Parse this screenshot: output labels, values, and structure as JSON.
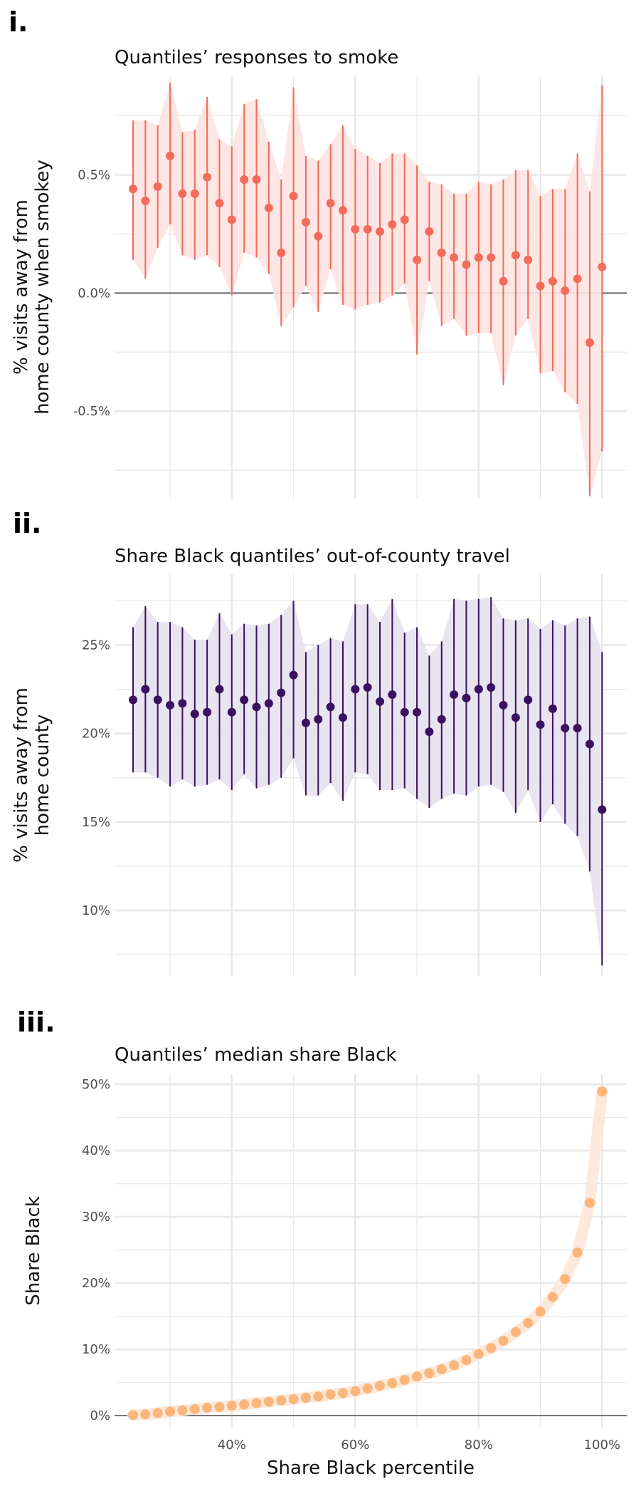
{
  "panels": {
    "p1": {
      "label": "i.",
      "title": "Quantiles’ responses to smoke"
    },
    "p2": {
      "label": "ii.",
      "title": "Share Black quantiles’ out-of-county travel"
    },
    "p3": {
      "label": "iii.",
      "title": "Quantiles’ median share Black"
    }
  },
  "colors": {
    "p1": "#F26B5B",
    "p1_band": "#FDE3E0",
    "p2": "#3A1060",
    "p2_band": "#E6E1EE",
    "p3": "#FCB57A",
    "p3_band": "#FDE9DB",
    "grid": "#E8E8E8",
    "zero": "#333333"
  },
  "chart_data": [
    {
      "type": "scatter",
      "title": "Quantiles’ responses to smoke",
      "ylabel": [
        "% visits away from",
        "home county when smokey"
      ],
      "xlabel": "",
      "xlim": [
        21,
        104
      ],
      "ylim": [
        -0.87,
        0.92
      ],
      "yticks": [
        {
          "v": 0.5,
          "label": "0.5%"
        },
        {
          "v": 0.0,
          "label": "0.0%"
        },
        {
          "v": -0.5,
          "label": "-0.5%"
        }
      ],
      "zero_line": true,
      "x": [
        24,
        26,
        28,
        30,
        32,
        34,
        36,
        38,
        40,
        42,
        44,
        46,
        48,
        50,
        52,
        54,
        56,
        58,
        60,
        62,
        64,
        66,
        68,
        70,
        72,
        74,
        76,
        78,
        80,
        82,
        84,
        86,
        88,
        90,
        92,
        94,
        96,
        98,
        100
      ],
      "series": [
        {
          "y": [
            0.44,
            0.39,
            0.45,
            0.58,
            0.42,
            0.42,
            0.49,
            0.38,
            0.31,
            0.48,
            0.48,
            0.36,
            0.17,
            0.41,
            0.3,
            0.24,
            0.38,
            0.35,
            0.27,
            0.27,
            0.26,
            0.29,
            0.31,
            0.14,
            0.26,
            0.17,
            0.15,
            0.12,
            0.15,
            0.15,
            0.05,
            0.16,
            0.14,
            0.03,
            0.05,
            0.01,
            0.06,
            -0.21,
            0.11
          ],
          "lo": [
            0.14,
            0.06,
            0.19,
            0.29,
            0.16,
            0.14,
            0.16,
            0.11,
            -0.01,
            0.17,
            0.15,
            0.08,
            -0.14,
            -0.06,
            0.03,
            -0.08,
            0.1,
            -0.05,
            -0.07,
            -0.05,
            -0.04,
            -0.01,
            0.04,
            -0.26,
            0.05,
            -0.14,
            -0.11,
            -0.18,
            -0.17,
            -0.17,
            -0.39,
            -0.18,
            -0.11,
            -0.34,
            -0.33,
            -0.42,
            -0.47,
            -0.86,
            -0.67
          ],
          "hi": [
            0.73,
            0.73,
            0.71,
            0.89,
            0.68,
            0.69,
            0.83,
            0.65,
            0.62,
            0.8,
            0.82,
            0.64,
            0.48,
            0.87,
            0.58,
            0.56,
            0.63,
            0.71,
            0.61,
            0.58,
            0.55,
            0.59,
            0.59,
            0.54,
            0.47,
            0.46,
            0.42,
            0.42,
            0.47,
            0.46,
            0.48,
            0.52,
            0.52,
            0.41,
            0.44,
            0.44,
            0.59,
            0.43,
            0.88
          ]
        }
      ]
    },
    {
      "type": "scatter",
      "title": "Share Black quantiles’ out-of-county travel",
      "ylabel": [
        "% visits away from",
        "home county"
      ],
      "xlabel": "",
      "xlim": [
        21,
        104
      ],
      "ylim": [
        6.3,
        29.0
      ],
      "yticks": [
        {
          "v": 25,
          "label": "25%"
        },
        {
          "v": 20,
          "label": "20%"
        },
        {
          "v": 15,
          "label": "15%"
        },
        {
          "v": 10,
          "label": "10%"
        }
      ],
      "zero_line": false,
      "x": [
        24,
        26,
        28,
        30,
        32,
        34,
        36,
        38,
        40,
        42,
        44,
        46,
        48,
        50,
        52,
        54,
        56,
        58,
        60,
        62,
        64,
        66,
        68,
        70,
        72,
        74,
        76,
        78,
        80,
        82,
        84,
        86,
        88,
        90,
        92,
        94,
        96,
        98,
        100
      ],
      "series": [
        {
          "y": [
            21.9,
            22.5,
            21.9,
            21.6,
            21.7,
            21.1,
            21.2,
            22.5,
            21.2,
            21.9,
            21.5,
            21.7,
            22.3,
            23.3,
            20.6,
            20.8,
            21.5,
            20.9,
            22.5,
            22.6,
            21.8,
            22.2,
            21.2,
            21.2,
            20.1,
            20.8,
            22.2,
            22.0,
            22.5,
            22.6,
            21.6,
            20.9,
            21.9,
            20.5,
            21.4,
            20.3,
            20.3,
            19.4,
            15.7
          ],
          "lo": [
            17.8,
            17.8,
            17.5,
            17.0,
            17.4,
            17.0,
            17.1,
            17.4,
            16.8,
            17.7,
            16.9,
            17.1,
            17.5,
            18.6,
            16.5,
            16.5,
            17.2,
            16.2,
            17.8,
            17.7,
            16.8,
            16.8,
            16.9,
            16.3,
            15.8,
            16.3,
            16.6,
            16.5,
            17.0,
            17.1,
            16.7,
            15.5,
            16.8,
            15.0,
            16.0,
            14.9,
            14.2,
            12.2,
            6.9
          ],
          "hi": [
            26.0,
            27.2,
            26.3,
            26.3,
            26.0,
            25.3,
            25.3,
            26.8,
            25.6,
            26.2,
            26.1,
            26.2,
            26.7,
            27.5,
            24.6,
            25.0,
            25.4,
            25.2,
            27.3,
            27.3,
            26.3,
            27.6,
            25.7,
            26.0,
            24.4,
            25.2,
            27.6,
            27.5,
            27.6,
            27.7,
            26.5,
            26.4,
            26.5,
            25.9,
            26.4,
            26.1,
            26.5,
            26.6,
            24.6
          ]
        }
      ]
    },
    {
      "type": "scatter",
      "title": "Quantiles’ median share Black",
      "ylabel": [
        "Share Black"
      ],
      "xlabel": "Share Black percentile",
      "xlim": [
        21,
        104
      ],
      "ylim": [
        -1.8,
        51.5
      ],
      "yticks": [
        {
          "v": 50,
          "label": "50%"
        },
        {
          "v": 40,
          "label": "40%"
        },
        {
          "v": 30,
          "label": "30%"
        },
        {
          "v": 20,
          "label": "20%"
        },
        {
          "v": 10,
          "label": "10%"
        },
        {
          "v": 0,
          "label": "0%"
        }
      ],
      "xticks": [
        {
          "v": 40,
          "label": "40%"
        },
        {
          "v": 60,
          "label": "60%"
        },
        {
          "v": 80,
          "label": "80%"
        },
        {
          "v": 100,
          "label": "100%"
        }
      ],
      "zero_line": true,
      "x": [
        24,
        26,
        28,
        30,
        32,
        34,
        36,
        38,
        40,
        42,
        44,
        46,
        48,
        50,
        52,
        54,
        56,
        58,
        60,
        62,
        64,
        66,
        68,
        70,
        72,
        74,
        76,
        78,
        80,
        82,
        84,
        86,
        88,
        90,
        92,
        94,
        96,
        98,
        100
      ],
      "series": [
        {
          "y": [
            0.1,
            0.2,
            0.4,
            0.6,
            0.8,
            1.0,
            1.2,
            1.3,
            1.5,
            1.7,
            1.9,
            2.1,
            2.3,
            2.5,
            2.7,
            2.9,
            3.2,
            3.4,
            3.7,
            4.1,
            4.5,
            4.9,
            5.4,
            5.9,
            6.4,
            7.0,
            7.6,
            8.4,
            9.3,
            10.2,
            11.3,
            12.6,
            14.0,
            15.7,
            17.9,
            20.6,
            24.6,
            32.1,
            48.9
          ]
        }
      ]
    }
  ]
}
